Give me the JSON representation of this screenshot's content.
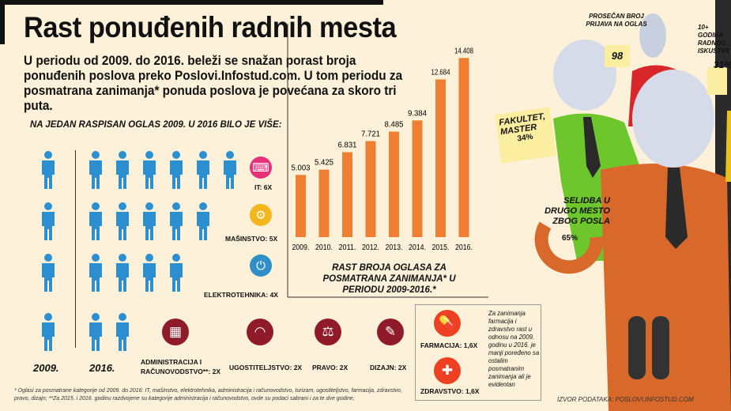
{
  "title": "Rast ponuđenih radnih mesta",
  "intro": "U periodu od 2009. do 2016. beleži se snažan porast broja ponuđenih poslova preko Poslovi.Infostud.com. U tom periodu za posmatrana zanimanja* ponuda poslova je povećana za skoro tri puta.",
  "subtitle": "NA JEDAN RASPISAN OGLAS 2009. U 2016 BILO JE VIŠE:",
  "years": {
    "left": "2009.",
    "right": "2016."
  },
  "categories": [
    {
      "label": "IT: 6X",
      "icon": "keyboard-icon",
      "color": "#e6317a",
      "multiplier": 6
    },
    {
      "label": "MAŠINSTVO: 5X",
      "icon": "gear-icon",
      "color": "#f3b71b",
      "multiplier": 5
    },
    {
      "label": "ELEKTROTEHNIKA: 4X",
      "icon": "plug-icon",
      "color": "#2f8fc6",
      "multiplier": 4
    },
    {
      "label": "ADMINISTRACIJA I RAČUNOVODSTVO**: 2X",
      "icon": "calculator-icon",
      "color": "#8e1a2a",
      "multiplier": 2
    },
    {
      "label": "UGOSTITELJSTVO: 2X",
      "icon": "cloche-icon",
      "color": "#8e1a2a",
      "multiplier": 2
    },
    {
      "label": "PRAVO: 2X",
      "icon": "scales-icon",
      "color": "#8e1a2a",
      "multiplier": 2
    },
    {
      "label": "DIZAJN: 2X",
      "icon": "design-icon",
      "color": "#8e1a2a",
      "multiplier": 2
    }
  ],
  "health_box": {
    "items": [
      {
        "label": "FARMACIJA: 1,6X",
        "icon": "pills-icon"
      },
      {
        "label": "ZDRAVSTVO: 1,6X",
        "icon": "medkit-icon"
      }
    ],
    "note": "Za zanimanja farmacija i zdravstvo rast u odnosu na 2009. godinu u 2016. je manji poređeno sa ostalim posmatranim zanimanja ali je evidentan",
    "color": "#ee4123"
  },
  "chart_data": {
    "type": "bar",
    "categories": [
      "2009.",
      "2010.",
      "2011.",
      "2012.",
      "2013.",
      "2014.",
      "2015.",
      "2016."
    ],
    "values": [
      5003,
      5425,
      6831,
      7721,
      8485,
      9384,
      12684,
      14408
    ],
    "value_labels": [
      "5.003",
      "5.425",
      "6.831",
      "7.721",
      "8.485",
      "9.384",
      "12.684",
      "14.408"
    ],
    "title": "RAST BROJA OGLASA ZA POSMATRANA ZANIMANJA* U PERIODU 2009-2016.*",
    "ylim": [
      0,
      15000
    ],
    "color": "#f07f33",
    "grid": false
  },
  "stickies": {
    "applications": {
      "label": "PROSEČAN BROJ PRIJAVA NA OGLAS",
      "value": "98"
    },
    "experience": {
      "label": "10+ GODINA RADNOG ISKUSTVA",
      "value": "31%",
      "percent": 31
    },
    "education": {
      "label": "FAKULTET, MASTER",
      "value": "34%",
      "percent": 34
    },
    "relocation": {
      "label": "SELIDBA U DRUGO MESTO ZBOG POSLA",
      "value": "65%",
      "percent": 65
    }
  },
  "source": "IZVOR PODATAKA: POSLOVI.INFOSTUD.COM",
  "footnote": "* Oglasi za posmatrane kategorije od 2009. do 2016: IT, mašinstvo, elektrotehnika, administracija i računovodstvo, turizam, ugostiteljstvo, farmacija, zdravstvo, pravo, dizajn; **Za 2015. i 2016. godinu razdvojene su kategorije administracija i računovodstvo, ovde su podaci sabrani i za te dve godine;"
}
